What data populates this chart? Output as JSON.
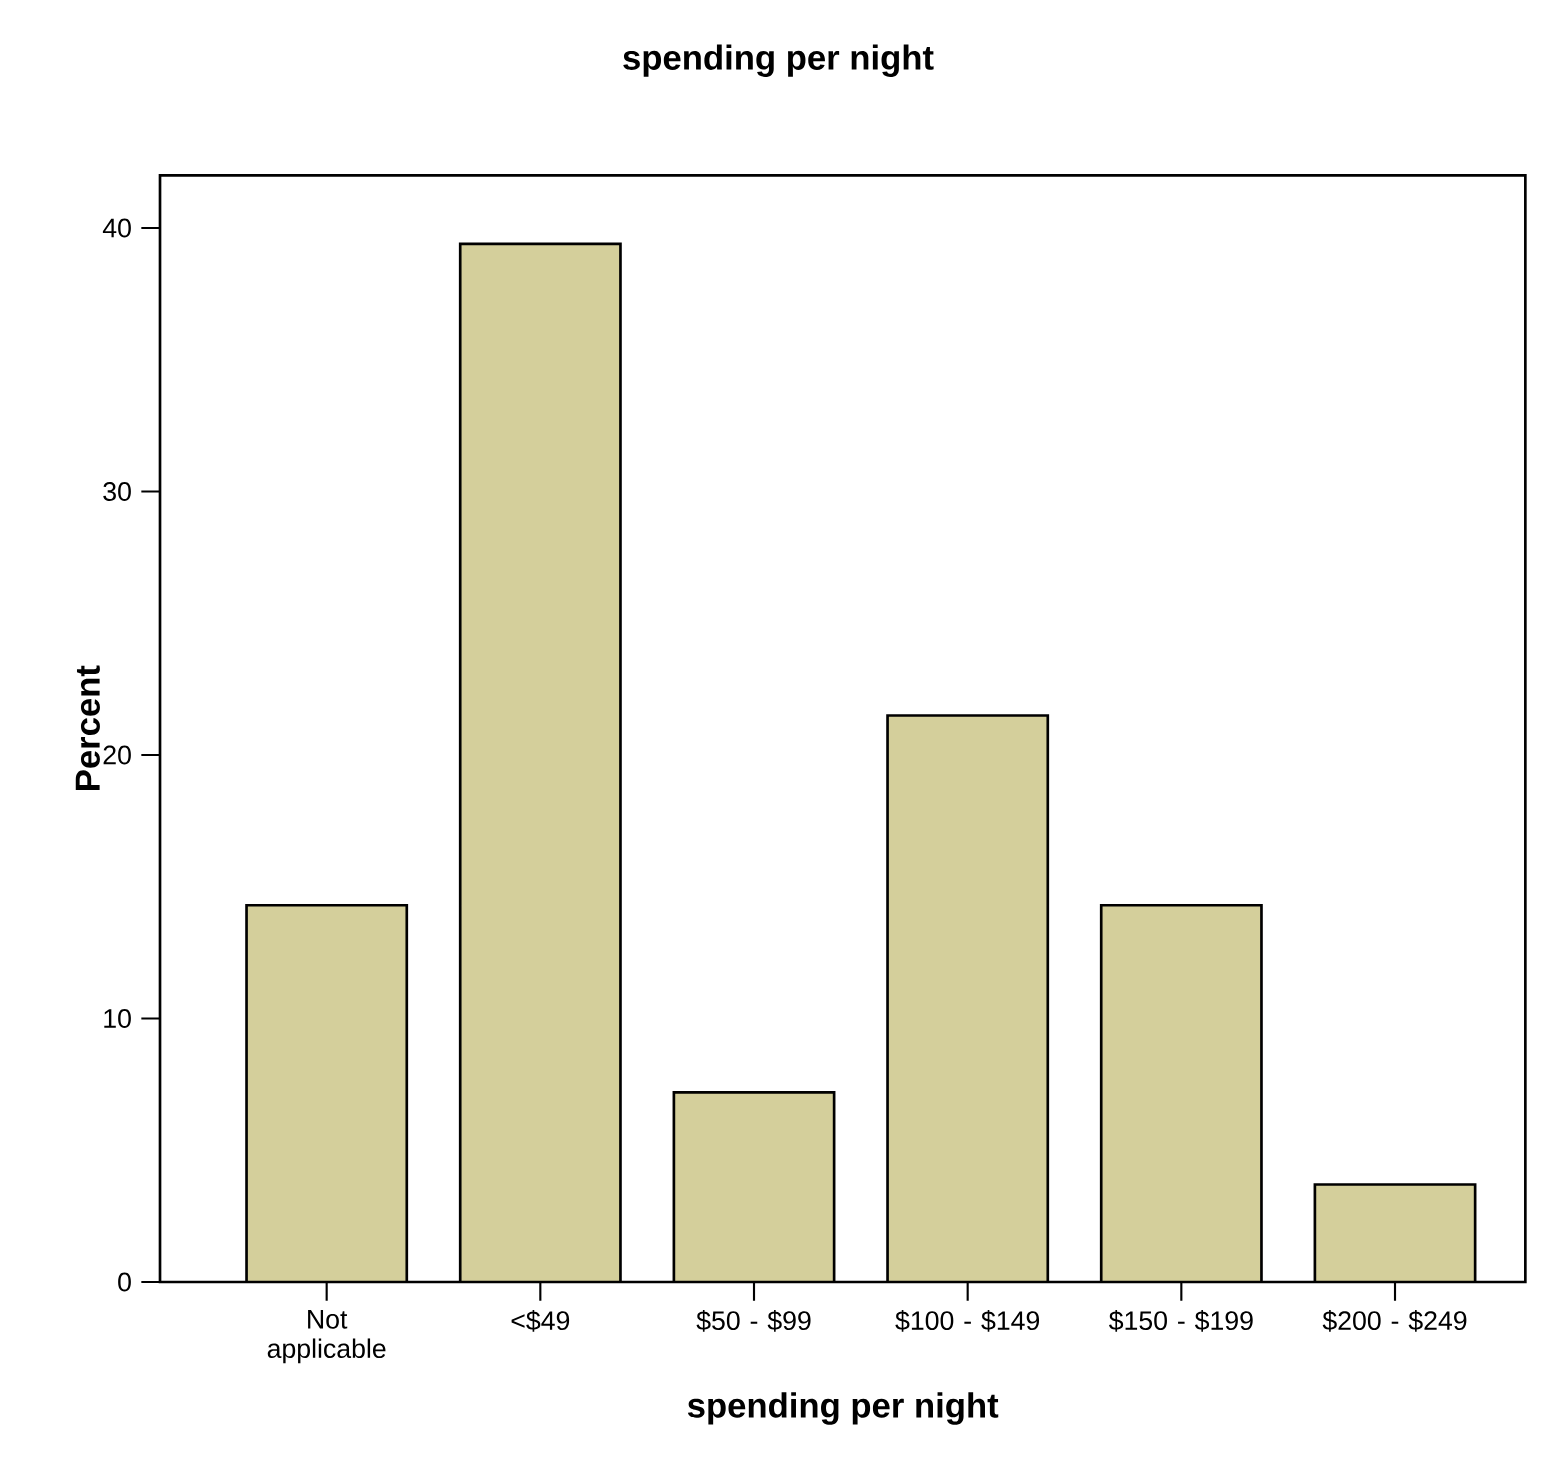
{
  "chart_data": {
    "type": "bar",
    "title": "spending per night",
    "xlabel": "spending per night",
    "ylabel": "Percent",
    "categories": [
      "Not applicable",
      "<$49",
      "$50 - $99",
      "$100 - $149",
      "$150 - $199",
      "$200 - $249"
    ],
    "values": [
      14.3,
      39.4,
      7.2,
      21.5,
      14.3,
      3.7
    ],
    "color": "#d4cf9b",
    "ylim": [
      0,
      42
    ],
    "yticks": [
      0,
      10,
      20,
      30,
      40
    ],
    "grid": false
  }
}
